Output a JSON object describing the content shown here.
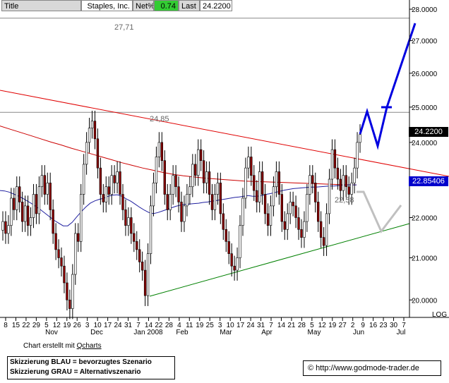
{
  "header": {
    "title_label": "Title",
    "company": "Staples, Inc.",
    "netpct_label": "Net%",
    "netpct_value": "0.74",
    "last_label": "Last",
    "last_value": "24.2200"
  },
  "price_tags": {
    "last": "24.2200",
    "ma": "22.85406"
  },
  "annotations": {
    "high_top": "27,71",
    "high_mid": "24,85",
    "low_label": "22,58"
  },
  "log_label": "LOG",
  "footer": {
    "credit_prefix": "Chart erstellt mit ",
    "credit_link": "Qcharts",
    "legend_blue": "Skizzierung BLAU = bevorzugtes Szenario",
    "legend_grey": "Skizzierung GRAU = Alternativszenario",
    "copyright": "© http://www.godmode-trader.de"
  },
  "colors": {
    "up": "#ffffff",
    "down": "#8b0000",
    "candle_outline": "#000000",
    "resistance": "#e00000",
    "support": "#008000",
    "ma200": "#cc0000",
    "ma50": "#2020a0",
    "scenario_blue": "#0000e0",
    "scenario_grey": "#c0c0c0",
    "tag_last": "#000000",
    "tag_ma": "#0000cc"
  },
  "chart_data": {
    "type": "candlestick",
    "y_scale": "log",
    "ylim": [
      19.6,
      28.3
    ],
    "y_ticks": [
      20.0,
      21.0,
      22.0,
      23.0,
      24.0,
      25.0,
      26.0,
      27.0,
      28.0
    ],
    "y_tick_labels": [
      "20.0000",
      "21.0000",
      "22.0000",
      "23.0000",
      "24.0000",
      "25.0000",
      "26.0000",
      "27.0000",
      "28.0000"
    ],
    "x_day_labels": [
      "8",
      "15",
      "22",
      "29",
      "5",
      "12",
      "19",
      "26",
      "3",
      "10",
      "17",
      "24",
      "31",
      "7",
      "14",
      "22",
      "28",
      "4",
      "11",
      "19",
      "25",
      "3",
      "10",
      "17",
      "24",
      "31",
      "7",
      "14",
      "21",
      "28",
      "5",
      "12",
      "19",
      "27",
      "2",
      "9",
      "16",
      "23",
      "30",
      "7"
    ],
    "x_month_labels": [
      "Nov",
      "Dec",
      "Jan 2008",
      "Feb",
      "Mar",
      "Apr",
      "May",
      "Jun",
      "Jul"
    ],
    "reference_levels": [
      27.71,
      24.85
    ],
    "closes": [
      21.9,
      21.6,
      21.8,
      22.5,
      22.2,
      22.8,
      22.4,
      21.9,
      22.3,
      21.8,
      22.0,
      22.6,
      22.1,
      22.8,
      23.1,
      22.6,
      22.9,
      22.2,
      21.6,
      21.2,
      21.0,
      20.8,
      20.4,
      20.0,
      19.8,
      20.6,
      21.6,
      21.4,
      22.6,
      23.4,
      24.0,
      24.4,
      24.6,
      24.1,
      23.3,
      22.6,
      22.4,
      22.8,
      22.6,
      23.1,
      22.9,
      23.2,
      22.6,
      22.2,
      21.8,
      22.0,
      21.6,
      21.4,
      21.2,
      20.9,
      20.7,
      20.1,
      21.1,
      22.3,
      22.9,
      23.6,
      24.0,
      23.5,
      22.6,
      22.2,
      22.6,
      23.1,
      22.8,
      22.4,
      21.9,
      22.3,
      22.6,
      22.8,
      23.4,
      23.1,
      23.8,
      23.5,
      22.9,
      23.2,
      22.6,
      22.2,
      22.6,
      22.9,
      22.1,
      21.7,
      21.4,
      21.1,
      20.8,
      20.7,
      21.0,
      21.8,
      22.5,
      23.3,
      23.6,
      23.1,
      22.7,
      22.4,
      23.2,
      22.6,
      22.1,
      21.8,
      22.3,
      22.8,
      23.2,
      22.6,
      21.9,
      21.7,
      22.1,
      22.4,
      22.3,
      22.0,
      21.7,
      21.5,
      21.9,
      22.6,
      23.1,
      22.9,
      22.4,
      21.9,
      21.5,
      21.3,
      22.1,
      23.0,
      23.8,
      23.3,
      23.0,
      22.7,
      23.1,
      22.8,
      22.6,
      22.9,
      23.3,
      24.0,
      24.22
    ],
    "ma50": [
      22.7,
      22.69,
      22.66,
      22.61,
      22.56,
      22.5,
      22.43,
      22.36,
      22.28,
      22.2,
      22.11,
      22.02,
      21.93,
      21.86,
      21.79,
      21.79,
      21.88,
      22.02,
      22.15,
      22.27,
      22.37,
      22.43,
      22.47,
      22.5,
      22.55,
      22.58,
      22.59,
      22.55,
      22.48,
      22.42,
      22.34,
      22.26,
      22.19,
      22.13,
      22.1,
      22.13,
      22.17,
      22.21,
      22.25,
      22.29,
      22.32,
      22.34,
      22.35,
      22.36,
      22.37,
      22.39,
      22.4,
      22.42,
      22.44,
      22.46,
      22.48,
      22.5,
      22.52,
      22.53,
      22.55,
      22.57,
      22.55,
      22.55,
      22.57,
      22.6,
      22.62,
      22.65,
      22.68,
      22.71,
      22.73,
      22.75,
      22.76,
      22.77,
      22.78,
      22.79,
      22.79,
      22.8,
      22.81,
      22.82,
      22.82,
      22.83,
      22.84,
      22.85,
      22.85,
      22.85
    ],
    "ma200": [
      24.46,
      24.37,
      24.28,
      24.19,
      24.1,
      24.01,
      23.93,
      23.84,
      23.76,
      23.68,
      23.6,
      23.52,
      23.44,
      23.37,
      23.3,
      23.24,
      23.18,
      23.13,
      23.09,
      23.06,
      23.03,
      23.01,
      22.99,
      22.97,
      22.95,
      22.94,
      22.93,
      22.92,
      22.91,
      22.9,
      22.89,
      22.88,
      22.87,
      22.86,
      22.85,
      22.85
    ]
  }
}
